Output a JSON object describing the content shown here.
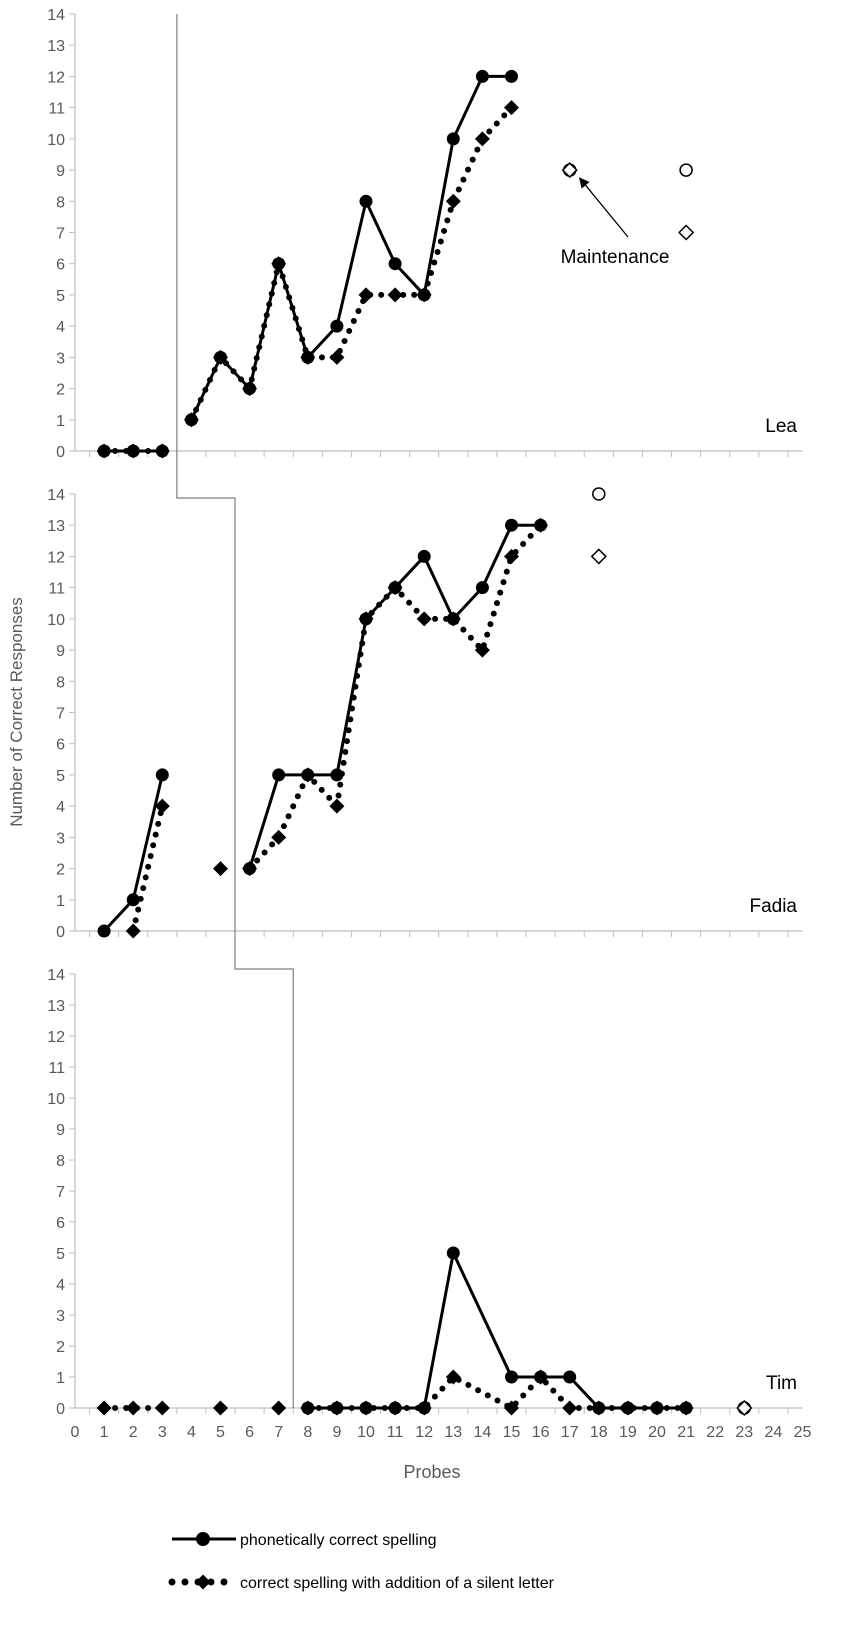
{
  "chart_data": {
    "type": "line",
    "ylabel": "Number of Correct Responses",
    "xlabel": "Probes",
    "x_ticks": [
      0,
      1,
      2,
      3,
      4,
      5,
      6,
      7,
      8,
      9,
      10,
      11,
      12,
      13,
      14,
      15,
      16,
      17,
      18,
      19,
      20,
      21,
      22,
      23,
      24,
      25
    ],
    "y_ticks": [
      0,
      1,
      2,
      3,
      4,
      5,
      6,
      7,
      8,
      9,
      10,
      11,
      12,
      13,
      14
    ],
    "xlim": [
      0,
      25
    ],
    "ylim": [
      0,
      14
    ],
    "grid": false,
    "legend_position": "bottom",
    "legend": [
      {
        "label": "phonetically correct spelling",
        "style": "solid line with filled circles"
      },
      {
        "label": "correct spelling with addition of a silent letter",
        "style": "dotted line with filled diamonds"
      }
    ],
    "annotation": {
      "text": "Maintenance",
      "panel": "Lea",
      "points_to": [
        17,
        9
      ]
    },
    "panels": [
      {
        "name": "Lea",
        "phase_change_after_probe": 3.5,
        "series": [
          {
            "name": "phonetically correct spelling",
            "segments": [
              [
                [
                  1,
                  0
                ],
                [
                  2,
                  0
                ],
                [
                  3,
                  0
                ]
              ],
              [
                [
                  4,
                  1
                ],
                [
                  5,
                  3
                ],
                [
                  6,
                  2
                ],
                [
                  7,
                  6
                ],
                [
                  8,
                  3
                ],
                [
                  9,
                  4
                ],
                [
                  10,
                  8
                ],
                [
                  11,
                  6
                ],
                [
                  12,
                  5
                ],
                [
                  13,
                  10
                ],
                [
                  14,
                  12
                ],
                [
                  15,
                  12
                ]
              ]
            ]
          },
          {
            "name": "correct spelling with addition of a silent letter",
            "segments": [
              [
                [
                  1,
                  0
                ],
                [
                  2,
                  0
                ],
                [
                  3,
                  0
                ]
              ],
              [
                [
                  4,
                  1
                ],
                [
                  5,
                  3
                ],
                [
                  6,
                  2
                ],
                [
                  7,
                  6
                ],
                [
                  8,
                  3
                ],
                [
                  9,
                  3
                ],
                [
                  10,
                  5
                ],
                [
                  11,
                  5
                ],
                [
                  12,
                  5
                ],
                [
                  13,
                  8
                ],
                [
                  14,
                  10
                ],
                [
                  15,
                  11
                ]
              ]
            ]
          }
        ],
        "maintenance": [
          {
            "series": "phonetically correct spelling",
            "points": [
              [
                17,
                9
              ],
              [
                21,
                9
              ]
            ]
          },
          {
            "series": "correct spelling with addition of a silent letter",
            "points": [
              [
                17,
                9
              ],
              [
                21,
                7
              ]
            ]
          }
        ]
      },
      {
        "name": "Fadia",
        "phase_change_after_probe": 5.5,
        "series": [
          {
            "name": "phonetically correct spelling",
            "segments": [
              [
                [
                  1,
                  0
                ],
                [
                  2,
                  1
                ],
                [
                  3,
                  5
                ]
              ],
              [
                [
                  6,
                  2
                ],
                [
                  7,
                  5
                ],
                [
                  8,
                  5
                ],
                [
                  9,
                  5
                ],
                [
                  10,
                  10
                ],
                [
                  11,
                  11
                ],
                [
                  12,
                  12
                ],
                [
                  13,
                  10
                ],
                [
                  14,
                  11
                ],
                [
                  15,
                  13
                ],
                [
                  16,
                  13
                ]
              ]
            ]
          },
          {
            "name": "correct spelling with addition of a silent letter",
            "segments": [
              [
                [
                  2,
                  0
                ],
                [
                  3,
                  4
                ]
              ],
              [
                [
                  5,
                  2
                ]
              ],
              [
                [
                  6,
                  2
                ],
                [
                  7,
                  3
                ],
                [
                  8,
                  5
                ],
                [
                  9,
                  4
                ],
                [
                  10,
                  10
                ],
                [
                  11,
                  11
                ],
                [
                  12,
                  10
                ],
                [
                  13,
                  10
                ],
                [
                  14,
                  9
                ],
                [
                  15,
                  12
                ],
                [
                  16,
                  13
                ]
              ]
            ]
          }
        ],
        "maintenance": [
          {
            "series": "phonetically correct spelling",
            "points": [
              [
                18,
                14
              ]
            ]
          },
          {
            "series": "correct spelling with addition of a silent letter",
            "points": [
              [
                18,
                12
              ]
            ]
          }
        ]
      },
      {
        "name": "Tim",
        "phase_change_after_probe": 7.5,
        "series": [
          {
            "name": "phonetically correct spelling",
            "segments": [
              [
                [
                  8,
                  0
                ],
                [
                  9,
                  0
                ],
                [
                  10,
                  0
                ],
                [
                  11,
                  0
                ],
                [
                  12,
                  0
                ],
                [
                  13,
                  5
                ],
                [
                  15,
                  1
                ],
                [
                  16,
                  1
                ],
                [
                  17,
                  1
                ],
                [
                  18,
                  0
                ],
                [
                  19,
                  0
                ],
                [
                  20,
                  0
                ],
                [
                  21,
                  0
                ]
              ]
            ]
          },
          {
            "name": "correct spelling with addition of a silent letter",
            "segments": [
              [
                [
                  1,
                  0
                ],
                [
                  2,
                  0
                ],
                [
                  3,
                  0
                ]
              ],
              [
                [
                  5,
                  0
                ]
              ],
              [
                [
                  7,
                  0
                ]
              ],
              [
                [
                  8,
                  0
                ],
                [
                  9,
                  0
                ],
                [
                  10,
                  0
                ],
                [
                  11,
                  0
                ],
                [
                  12,
                  0
                ],
                [
                  13,
                  1
                ],
                [
                  15,
                  0
                ],
                [
                  16,
                  1
                ],
                [
                  17,
                  0
                ],
                [
                  18,
                  0
                ],
                [
                  19,
                  0
                ],
                [
                  20,
                  0
                ],
                [
                  21,
                  0
                ]
              ]
            ]
          }
        ],
        "maintenance": [
          {
            "series": "phonetically correct spelling",
            "points": [
              [
                23,
                0
              ]
            ]
          },
          {
            "series": "correct spelling with addition of a silent letter",
            "points": [
              [
                23,
                0
              ]
            ]
          }
        ]
      }
    ]
  }
}
